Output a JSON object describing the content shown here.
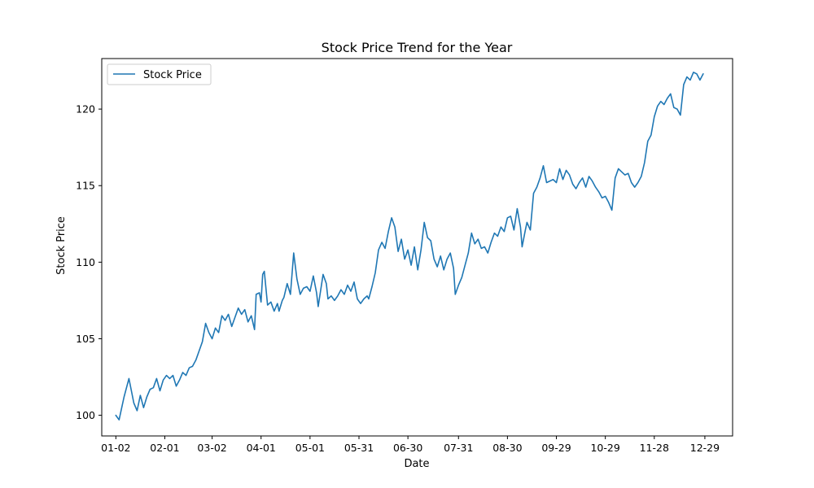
{
  "chart_data": {
    "type": "line",
    "title": "Stock Price Trend for the Year",
    "xlabel": "Date",
    "ylabel": "Stock Price",
    "x_tick_labels": [
      "01-02",
      "02-01",
      "03-02",
      "04-01",
      "05-01",
      "05-31",
      "06-30",
      "07-31",
      "08-30",
      "09-29",
      "10-29",
      "11-28",
      "12-29"
    ],
    "x_tick_days": [
      0,
      30,
      59,
      89,
      119,
      149,
      179,
      210,
      240,
      270,
      300,
      330,
      361
    ],
    "xlim": [
      -8.65,
      378.0
    ],
    "yticks": [
      100,
      105,
      110,
      115,
      120
    ],
    "ylim": [
      98.65,
      123.3
    ],
    "grid": false,
    "legend": {
      "position": "top-left",
      "entries": [
        "Stock Price"
      ]
    },
    "series": [
      {
        "name": "Stock Price",
        "color": "#1f77b4",
        "points": [
          [
            0,
            100.0
          ],
          [
            2,
            99.7
          ],
          [
            5,
            101.2
          ],
          [
            8,
            102.4
          ],
          [
            11,
            100.8
          ],
          [
            13,
            100.3
          ],
          [
            15,
            101.3
          ],
          [
            17,
            100.5
          ],
          [
            19,
            101.2
          ],
          [
            21,
            101.7
          ],
          [
            23,
            101.8
          ],
          [
            25,
            102.4
          ],
          [
            27,
            101.6
          ],
          [
            29,
            102.3
          ],
          [
            31,
            102.6
          ],
          [
            33,
            102.4
          ],
          [
            35,
            102.6
          ],
          [
            37,
            101.9
          ],
          [
            39,
            102.3
          ],
          [
            41,
            102.8
          ],
          [
            43,
            102.6
          ],
          [
            45,
            103.1
          ],
          [
            47,
            103.2
          ],
          [
            49,
            103.6
          ],
          [
            51,
            104.2
          ],
          [
            53,
            104.8
          ],
          [
            55,
            106.0
          ],
          [
            57,
            105.4
          ],
          [
            59,
            105.0
          ],
          [
            61,
            105.7
          ],
          [
            63,
            105.4
          ],
          [
            65,
            106.5
          ],
          [
            67,
            106.2
          ],
          [
            69,
            106.6
          ],
          [
            71,
            105.8
          ],
          [
            73,
            106.4
          ],
          [
            75,
            107.0
          ],
          [
            77,
            106.6
          ],
          [
            79,
            106.9
          ],
          [
            81,
            106.1
          ],
          [
            83,
            106.5
          ],
          [
            85,
            105.6
          ],
          [
            86,
            107.9
          ],
          [
            88,
            108.0
          ],
          [
            89,
            107.4
          ],
          [
            90,
            109.2
          ],
          [
            91,
            109.4
          ],
          [
            93,
            107.2
          ],
          [
            95,
            107.4
          ],
          [
            97,
            106.8
          ],
          [
            99,
            107.3
          ],
          [
            100,
            106.8
          ],
          [
            102,
            107.5
          ],
          [
            103,
            107.7
          ],
          [
            105,
            108.6
          ],
          [
            107,
            107.9
          ],
          [
            109,
            110.6
          ],
          [
            111,
            108.9
          ],
          [
            113,
            107.9
          ],
          [
            115,
            108.3
          ],
          [
            117,
            108.4
          ],
          [
            119,
            108.1
          ],
          [
            121,
            109.1
          ],
          [
            123,
            108.0
          ],
          [
            124,
            107.1
          ],
          [
            126,
            108.5
          ],
          [
            127,
            109.2
          ],
          [
            129,
            108.6
          ],
          [
            130,
            107.6
          ],
          [
            132,
            107.8
          ],
          [
            134,
            107.5
          ],
          [
            136,
            107.8
          ],
          [
            138,
            108.2
          ],
          [
            140,
            107.9
          ],
          [
            142,
            108.5
          ],
          [
            144,
            108.1
          ],
          [
            146,
            108.7
          ],
          [
            148,
            107.6
          ],
          [
            150,
            107.3
          ],
          [
            152,
            107.6
          ],
          [
            154,
            107.8
          ],
          [
            155,
            107.6
          ],
          [
            157,
            108.4
          ],
          [
            159,
            109.3
          ],
          [
            161,
            110.8
          ],
          [
            163,
            111.3
          ],
          [
            165,
            110.9
          ],
          [
            167,
            112.0
          ],
          [
            169,
            112.9
          ],
          [
            171,
            112.3
          ],
          [
            173,
            110.7
          ],
          [
            175,
            111.5
          ],
          [
            177,
            110.2
          ],
          [
            179,
            110.8
          ],
          [
            181,
            109.8
          ],
          [
            183,
            111.0
          ],
          [
            185,
            109.5
          ],
          [
            187,
            110.8
          ],
          [
            189,
            112.6
          ],
          [
            191,
            111.6
          ],
          [
            193,
            111.4
          ],
          [
            195,
            110.2
          ],
          [
            197,
            109.7
          ],
          [
            199,
            110.4
          ],
          [
            201,
            109.5
          ],
          [
            203,
            110.2
          ],
          [
            205,
            110.6
          ],
          [
            207,
            109.6
          ],
          [
            208,
            107.9
          ],
          [
            210,
            108.5
          ],
          [
            212,
            109.0
          ],
          [
            214,
            109.8
          ],
          [
            216,
            110.6
          ],
          [
            218,
            111.9
          ],
          [
            220,
            111.2
          ],
          [
            222,
            111.5
          ],
          [
            224,
            110.9
          ],
          [
            226,
            111.0
          ],
          [
            228,
            110.6
          ],
          [
            230,
            111.3
          ],
          [
            232,
            111.9
          ],
          [
            234,
            111.7
          ],
          [
            236,
            112.3
          ],
          [
            238,
            112.0
          ],
          [
            240,
            112.9
          ],
          [
            242,
            113.0
          ],
          [
            244,
            112.1
          ],
          [
            246,
            113.5
          ],
          [
            248,
            112.3
          ],
          [
            249,
            111.0
          ],
          [
            251,
            112.1
          ],
          [
            252,
            112.6
          ],
          [
            254,
            112.1
          ],
          [
            256,
            114.5
          ],
          [
            258,
            114.9
          ],
          [
            260,
            115.5
          ],
          [
            262,
            116.3
          ],
          [
            264,
            115.2
          ],
          [
            266,
            115.3
          ],
          [
            268,
            115.4
          ],
          [
            270,
            115.2
          ],
          [
            272,
            116.1
          ],
          [
            274,
            115.4
          ],
          [
            276,
            116.0
          ],
          [
            278,
            115.7
          ],
          [
            280,
            115.1
          ],
          [
            282,
            114.8
          ],
          [
            284,
            115.2
          ],
          [
            286,
            115.5
          ],
          [
            288,
            114.9
          ],
          [
            290,
            115.6
          ],
          [
            292,
            115.3
          ],
          [
            294,
            114.9
          ],
          [
            296,
            114.6
          ],
          [
            298,
            114.2
          ],
          [
            300,
            114.3
          ],
          [
            302,
            113.9
          ],
          [
            304,
            113.4
          ],
          [
            306,
            115.5
          ],
          [
            308,
            116.1
          ],
          [
            310,
            115.9
          ],
          [
            312,
            115.7
          ],
          [
            314,
            115.8
          ],
          [
            316,
            115.2
          ],
          [
            318,
            114.9
          ],
          [
            320,
            115.2
          ],
          [
            322,
            115.6
          ],
          [
            324,
            116.5
          ],
          [
            326,
            117.9
          ],
          [
            328,
            118.3
          ],
          [
            330,
            119.5
          ],
          [
            332,
            120.2
          ],
          [
            334,
            120.5
          ],
          [
            336,
            120.3
          ],
          [
            338,
            120.7
          ],
          [
            340,
            121.0
          ],
          [
            342,
            120.1
          ],
          [
            344,
            120.0
          ],
          [
            346,
            119.6
          ],
          [
            348,
            121.6
          ],
          [
            350,
            122.1
          ],
          [
            352,
            121.9
          ],
          [
            354,
            122.4
          ],
          [
            356,
            122.3
          ],
          [
            358,
            121.9
          ],
          [
            360,
            122.3
          ]
        ]
      }
    ]
  }
}
